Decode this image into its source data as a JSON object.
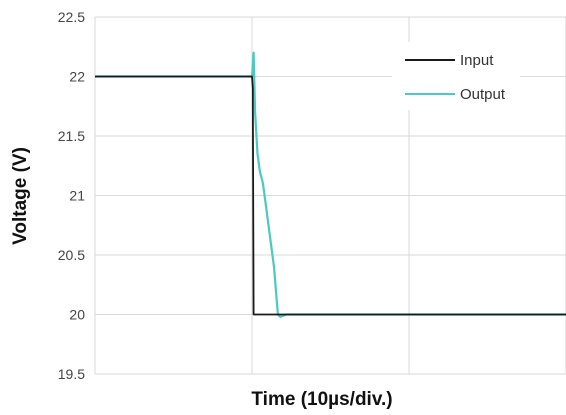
{
  "chart_data": {
    "type": "line",
    "title": "",
    "xlabel": "Time (10µs/div.)",
    "ylabel": "Voltage (V)",
    "xlim": [
      0,
      30
    ],
    "ylim": [
      19.5,
      22.5
    ],
    "yticks": [
      "22.5",
      "22",
      "21.5",
      "21",
      "20.5",
      "20",
      "19.5"
    ],
    "ytick_values": [
      22.5,
      22,
      21.5,
      21,
      20.5,
      20,
      19.5
    ],
    "xgrid": [
      0,
      10,
      20,
      30
    ],
    "grid": true,
    "legend": {
      "position": "top-right"
    },
    "series": [
      {
        "name": "Input",
        "color": "#1a1a1a",
        "points": [
          [
            0,
            22.0
          ],
          [
            10.0,
            22.0
          ],
          [
            10.05,
            21.9
          ],
          [
            10.1,
            20.0
          ],
          [
            30.0,
            20.0
          ]
        ]
      },
      {
        "name": "Output",
        "color": "#4cc9c0",
        "points": [
          [
            0,
            22.0
          ],
          [
            10.0,
            22.0
          ],
          [
            10.1,
            22.2
          ],
          [
            10.2,
            21.7
          ],
          [
            10.35,
            21.35
          ],
          [
            10.5,
            21.2
          ],
          [
            10.7,
            21.1
          ],
          [
            11.4,
            20.4
          ],
          [
            11.65,
            20.0
          ],
          [
            11.8,
            19.98
          ],
          [
            12.2,
            20.0
          ],
          [
            30.0,
            20.0
          ]
        ]
      }
    ]
  }
}
